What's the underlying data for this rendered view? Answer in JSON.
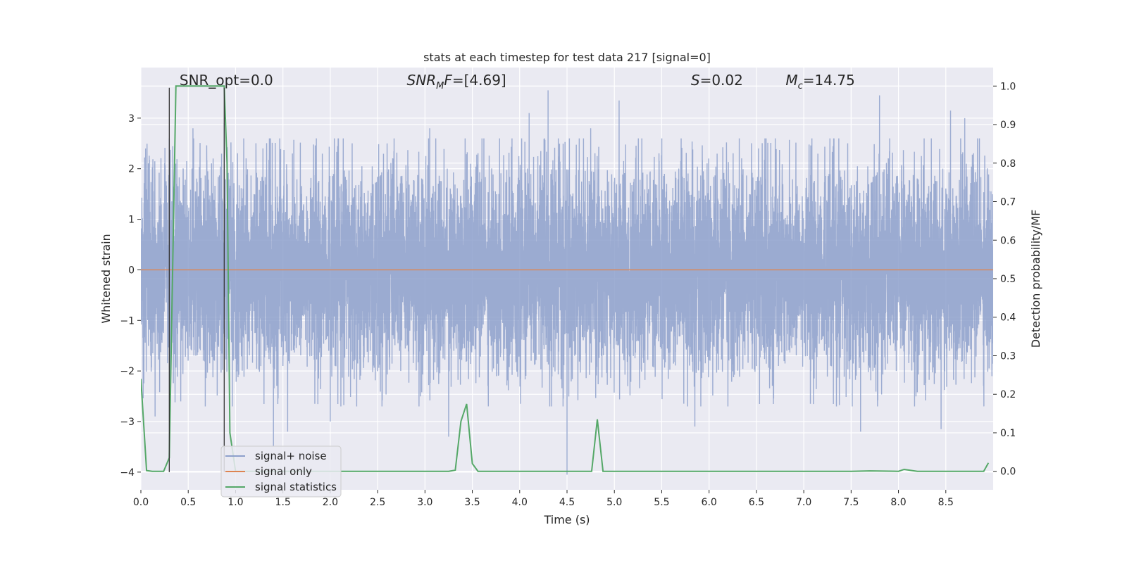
{
  "chart_data": {
    "type": "line",
    "title": "stats at each timestep for test data 217 [signal=0]",
    "xlabel": "Time (s)",
    "ylabel": "Whitened strain",
    "y2label": "Detection probability/MF",
    "xlim": [
      0.0,
      9.0
    ],
    "ylim": [
      -4.35,
      4.0
    ],
    "y2lim": [
      -0.048,
      1.048
    ],
    "x_ticks": [
      0.0,
      0.5,
      1.0,
      1.5,
      2.0,
      2.5,
      3.0,
      3.5,
      4.0,
      4.5,
      5.0,
      5.5,
      6.0,
      6.5,
      7.0,
      7.5,
      8.0,
      8.5
    ],
    "y_ticks": [
      -4,
      -3,
      -2,
      -1,
      0,
      1,
      2,
      3
    ],
    "y2_ticks": [
      0.0,
      0.1,
      0.2,
      0.3,
      0.4,
      0.5,
      0.6,
      0.7,
      0.8,
      0.9,
      1.0
    ],
    "grid": true,
    "legend_position": "lower-left",
    "annotations": [
      {
        "text": "SNR_opt=0.0",
        "x": 0.2
      },
      {
        "text": "SNR_MF=[4.69]",
        "x": 2.6
      },
      {
        "text": "S=0.02",
        "x": 5.6
      },
      {
        "text": "M_c=14.75",
        "x": 6.6
      }
    ],
    "markers": [
      0.3,
      0.88
    ],
    "series": [
      {
        "name": "signal+ noise",
        "axis": "left",
        "color": "#8da0cb",
        "style": "noise",
        "amplitude_sigma": 1.0,
        "peaks": [
          [
            0.05,
            2.4
          ],
          [
            0.3,
            2.6
          ],
          [
            0.55,
            2.8
          ],
          [
            0.88,
            2.9
          ],
          [
            1.6,
            2.3
          ],
          [
            2.6,
            2.5
          ],
          [
            3.05,
            2.8
          ],
          [
            3.25,
            2.6
          ],
          [
            4.1,
            3.1
          ],
          [
            4.3,
            3.55
          ],
          [
            4.75,
            2.8
          ],
          [
            5.05,
            3.35
          ],
          [
            7.6,
            3.1
          ],
          [
            7.8,
            3.45
          ],
          [
            8.55,
            3.15
          ],
          [
            8.7,
            3.0
          ]
        ],
        "troughs": [
          [
            0.15,
            -2.9
          ],
          [
            1.4,
            -3.5
          ],
          [
            1.55,
            -3.2
          ],
          [
            2.0,
            -3.0
          ],
          [
            3.25,
            -3.3
          ],
          [
            4.5,
            -4.05
          ],
          [
            5.85,
            -3.1
          ],
          [
            7.6,
            -3.2
          ],
          [
            8.45,
            -3.15
          ]
        ]
      },
      {
        "name": "signal only",
        "axis": "left",
        "color": "#dd8452",
        "style": "line",
        "x": [
          0.0,
          9.0
        ],
        "y": [
          0.0,
          0.0
        ]
      },
      {
        "name": "signal statistics",
        "axis": "right",
        "color": "#55a868",
        "style": "line",
        "x": [
          0.0,
          0.06,
          0.12,
          0.18,
          0.24,
          0.3,
          0.37,
          0.43,
          0.49,
          0.55,
          0.61,
          0.67,
          0.73,
          0.79,
          0.85,
          0.88,
          0.91,
          0.94,
          1.0,
          1.06,
          1.2,
          1.5,
          2.0,
          2.5,
          3.0,
          3.25,
          3.32,
          3.38,
          3.44,
          3.5,
          3.56,
          3.7,
          4.0,
          4.5,
          4.76,
          4.82,
          4.88,
          5.0,
          6.0,
          7.0,
          7.5,
          7.7,
          8.0,
          8.06,
          8.2,
          8.5,
          8.9,
          8.95
        ],
        "y": [
          0.24,
          0.002,
          0.0,
          0.0,
          0.0,
          0.035,
          1.0,
          1.0,
          1.0,
          1.0,
          1.0,
          1.0,
          1.0,
          1.0,
          1.0,
          1.0,
          0.8,
          0.1,
          0.0,
          0.0,
          0.0,
          0.0,
          0.0,
          0.0,
          0.0,
          0.0,
          0.003,
          0.13,
          0.175,
          0.02,
          0.0,
          0.0,
          0.0,
          0.0,
          0.0,
          0.135,
          0.0,
          0.0,
          0.0,
          0.0,
          0.0,
          0.001,
          0.0,
          0.005,
          0.0,
          0.0,
          0.0,
          0.022
        ]
      }
    ]
  }
}
